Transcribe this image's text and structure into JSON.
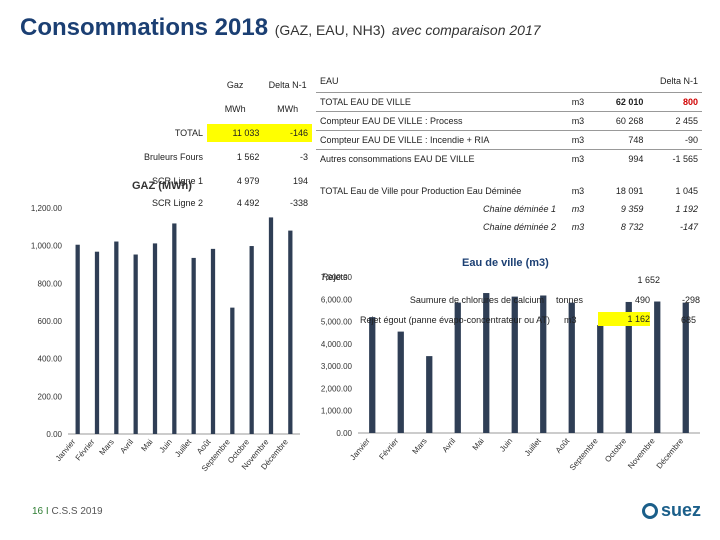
{
  "header": {
    "title_main": "Consommations 2018",
    "title_sub": "(GAZ, EAU, NH3)",
    "title_tail": "avec comparaison 2017"
  },
  "gaz_table": {
    "col_gaz": "Gaz",
    "col_delta": "Delta N-1",
    "unit_gaz": "MWh",
    "unit_delta": "MWh",
    "rows": [
      {
        "label": "TOTAL",
        "value": "11 033",
        "delta": "-146",
        "highlight": true
      },
      {
        "label": "Bruleurs Fours",
        "value": "1 562",
        "delta": "-3"
      },
      {
        "label": "SCR Ligne 1",
        "value": "4 979",
        "delta": "194"
      },
      {
        "label": "SCR Ligne 2",
        "value": "4 492",
        "delta": "-338"
      }
    ]
  },
  "eau_table": {
    "header_left": "EAU",
    "header_right": "Delta N-1",
    "rows": [
      {
        "label": "TOTAL EAU DE VILLE",
        "unit": "m3",
        "value": "62 010",
        "delta": "800",
        "delta_red": true
      },
      {
        "label": "Compteur EAU DE VILLE : Process",
        "unit": "m3",
        "value": "60 268",
        "delta": "2 455"
      },
      {
        "label": "Compteur EAU DE VILLE : Incendie + RIA",
        "unit": "m3",
        "value": "748",
        "delta": "-90"
      },
      {
        "label": "Autres consommations EAU DE VILLE",
        "unit": "m3",
        "value": "994",
        "delta": "-1 565"
      },
      {
        "label": "TOTAL Eau de Ville pour Production Eau Déminée",
        "unit": "m3",
        "value": "18 091",
        "delta": "1 045"
      },
      {
        "label": "Chaine déminée 1",
        "unit": "m3",
        "value": "9 359",
        "delta": "1 192",
        "italic": true
      },
      {
        "label": "Chaine déminée 2",
        "unit": "m3",
        "value": "8 732",
        "delta": "-147",
        "italic": true
      }
    ],
    "rejets_label": "Rejets",
    "rejets_value": "1 652",
    "rejets_rows": [
      {
        "label": "Saumure de chlorures de calcium",
        "unit": "tonnes",
        "value": "490",
        "delta": "-298"
      },
      {
        "label": "Rejet égout (panne évapo-concentrateur ou AT)",
        "unit": "m3",
        "value": "1 162",
        "delta": "685",
        "highlight": true
      }
    ]
  },
  "chart_data": [
    {
      "type": "bar",
      "title": "GAZ (MWh)",
      "categories": [
        "Janvier",
        "Février",
        "Mars",
        "Avril",
        "Mai",
        "Juin",
        "Juillet",
        "Août",
        "Septembre",
        "Octobre",
        "Novembre",
        "Décembre"
      ],
      "values": [
        1005,
        968,
        1022,
        953,
        1012,
        1118,
        935,
        983,
        671,
        998,
        1150,
        1080
      ],
      "yticks": [
        "1,200.00",
        "1,000.00",
        "800.00",
        "600.00",
        "400.00",
        "200.00",
        "0.00"
      ],
      "ylim": [
        0,
        1200
      ],
      "color": "#2f3e55"
    },
    {
      "type": "bar",
      "title": "Eau de ville (m3)",
      "categories": [
        "Janvier",
        "Février",
        "Mars",
        "Avril",
        "Mai",
        "Juin",
        "Juillet",
        "Août",
        "Septembre",
        "Octobre",
        "Novembre",
        "Décembre"
      ],
      "values": [
        5200,
        4550,
        3450,
        5850,
        6280,
        6120,
        6170,
        5850,
        4840,
        5880,
        5900,
        5850
      ],
      "yticks": [
        "7,000.00",
        "6,000.00",
        "5,000.00",
        "4,000.00",
        "3,000.00",
        "2,000.00",
        "1,000.00",
        "0.00"
      ],
      "ylim": [
        0,
        7000
      ],
      "color": "#2f3e55"
    }
  ],
  "footer": {
    "page": "16 I",
    "text": "C.S.S 2019"
  },
  "logo": {
    "text": "suez"
  }
}
